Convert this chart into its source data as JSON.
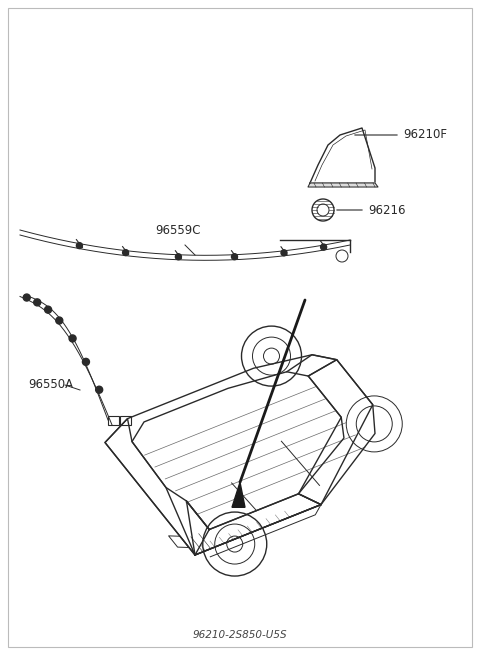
{
  "bg_color": "#ffffff",
  "line_color": "#2a2a2a",
  "label_color": "#1a1a1a",
  "font_size": 8.5,
  "font_size_small": 7.5,
  "figsize": [
    4.8,
    6.55
  ],
  "dpi": 100,
  "parts": {
    "antenna_fin": {
      "label": "96210F"
    },
    "gasket": {
      "label": "96216"
    },
    "roof_cable": {
      "label": "96559C"
    },
    "harness": {
      "label": "96550A"
    }
  }
}
